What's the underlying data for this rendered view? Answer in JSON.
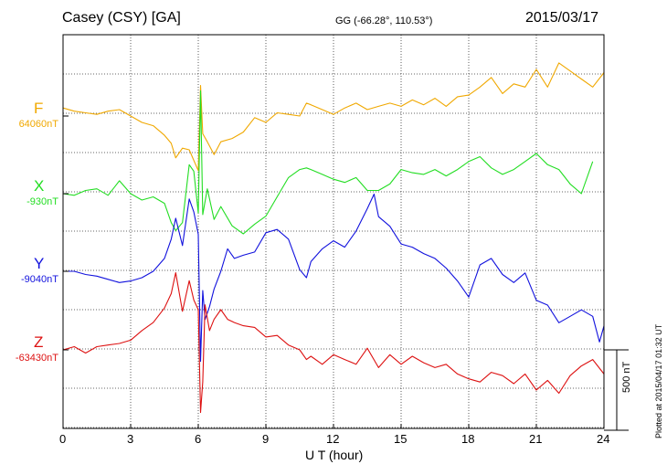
{
  "header": {
    "station": "Casey (CSY)  [GA]",
    "coords": "GG (-66.28°, 110.53°)",
    "date": "2015/03/17"
  },
  "footer": {
    "plotted": "Plotted at 2015/04/17 01:32 UT",
    "scale_label": "500 nT"
  },
  "chart_data": {
    "type": "line",
    "xlabel": "U T (hour)",
    "xlim": [
      0,
      24
    ],
    "xticks": [
      "0",
      "3",
      "6",
      "9",
      "12",
      "15",
      "18",
      "21",
      "24"
    ],
    "grid": true,
    "scale_bar_nT": 500,
    "series": [
      {
        "name": "F",
        "baseline_label": "64060nT",
        "color": "#f0a800",
        "hours": [
          0,
          0.5,
          1,
          1.5,
          2,
          2.5,
          3,
          3.5,
          4,
          4.5,
          4.8,
          5,
          5.3,
          5.6,
          6,
          6.1,
          6.2,
          6.4,
          6.7,
          7,
          7.5,
          8,
          8.5,
          9,
          9.5,
          10,
          10.5,
          10.8,
          11,
          11.5,
          12,
          12.5,
          13,
          13.5,
          14,
          14.5,
          15,
          15.5,
          16,
          16.5,
          17,
          17.5,
          18,
          18.5,
          19,
          19.5,
          20,
          20.5,
          21,
          21.5,
          22,
          22.5,
          23,
          23.5,
          24
        ],
        "offset_nT": [
          50,
          30,
          20,
          10,
          30,
          40,
          0,
          -40,
          -60,
          -120,
          -170,
          -260,
          -200,
          -210,
          -340,
          190,
          -110,
          -160,
          -240,
          -160,
          -140,
          -100,
          -10,
          -40,
          20,
          10,
          0,
          80,
          70,
          40,
          10,
          50,
          80,
          40,
          60,
          80,
          60,
          100,
          70,
          110,
          60,
          120,
          130,
          180,
          240,
          140,
          200,
          180,
          290,
          180,
          330,
          280,
          230,
          180,
          270
        ]
      },
      {
        "name": "X",
        "baseline_label": "-930nT",
        "color": "#22dd22",
        "hours": [
          0,
          0.5,
          1,
          1.5,
          2,
          2.5,
          3,
          3.5,
          4,
          4.5,
          4.8,
          5,
          5.3,
          5.6,
          5.8,
          6,
          6.1,
          6.2,
          6.4,
          6.7,
          7,
          7.5,
          8,
          8.5,
          9,
          9.5,
          10,
          10.5,
          10.8,
          11,
          11.5,
          12,
          12.5,
          13,
          13.5,
          14,
          14.5,
          15,
          15.5,
          16,
          16.5,
          17,
          17.5,
          18,
          18.5,
          19,
          19.5,
          20,
          20.5,
          21,
          21.5,
          22,
          22.5,
          23,
          23.5,
          24
        ],
        "offset_nT": [
          0,
          -10,
          20,
          30,
          -10,
          80,
          0,
          -40,
          -20,
          -60,
          -180,
          -230,
          -180,
          180,
          140,
          -120,
          640,
          -130,
          30,
          -160,
          -80,
          -200,
          -250,
          -190,
          -140,
          -20,
          100,
          150,
          160,
          150,
          120,
          90,
          70,
          100,
          20,
          20,
          60,
          150,
          130,
          120,
          150,
          110,
          150,
          200,
          230,
          160,
          120,
          150,
          200,
          250,
          180,
          150,
          60,
          0,
          200
        ]
      },
      {
        "name": "Y",
        "baseline_label": "-9040nT",
        "color": "#1111dd",
        "hours": [
          0,
          0.5,
          1,
          1.5,
          2,
          2.5,
          3,
          3.5,
          4,
          4.5,
          4.8,
          5,
          5.3,
          5.6,
          5.8,
          6,
          6.1,
          6.2,
          6.3,
          6.5,
          6.7,
          7,
          7.3,
          7.6,
          8,
          8.5,
          9,
          9.5,
          10,
          10.5,
          10.8,
          11,
          11.5,
          12,
          12.5,
          13,
          13.5,
          13.8,
          14,
          14.5,
          15,
          15.5,
          16,
          16.5,
          17,
          17.5,
          18,
          18.5,
          19,
          19.5,
          20,
          20.5,
          21,
          21.5,
          22,
          22.5,
          23,
          23.5,
          23.8,
          24
        ],
        "offset_nT": [
          0,
          0,
          -20,
          -30,
          -50,
          -70,
          -60,
          -40,
          0,
          80,
          200,
          330,
          160,
          450,
          370,
          230,
          -560,
          -120,
          -300,
          -220,
          -110,
          0,
          140,
          80,
          100,
          120,
          240,
          260,
          200,
          10,
          -40,
          60,
          140,
          190,
          150,
          250,
          390,
          480,
          340,
          280,
          170,
          150,
          110,
          80,
          20,
          -60,
          -160,
          40,
          80,
          -20,
          -70,
          -10,
          -180,
          -210,
          -320,
          -280,
          -240,
          -280,
          -440,
          -340
        ]
      },
      {
        "name": "Z",
        "baseline_label": "-63430nT",
        "color": "#dd1111",
        "hours": [
          0,
          0.5,
          1,
          1.5,
          2,
          2.5,
          3,
          3.5,
          4,
          4.5,
          4.8,
          5,
          5.3,
          5.6,
          5.8,
          6,
          6.1,
          6.2,
          6.3,
          6.5,
          6.7,
          7,
          7.3,
          7.6,
          8,
          8.5,
          9,
          9.5,
          10,
          10.5,
          10.8,
          11,
          11.5,
          12,
          12.5,
          13,
          13.5,
          14,
          14.5,
          15,
          15.5,
          16,
          16.5,
          17,
          17.5,
          18,
          18.5,
          19,
          19.5,
          20,
          20.5,
          21,
          21.5,
          22,
          22.5,
          23,
          23.5,
          24
        ],
        "offset_nT": [
          0,
          20,
          -20,
          20,
          30,
          40,
          60,
          120,
          170,
          260,
          350,
          480,
          240,
          430,
          310,
          250,
          -390,
          -200,
          280,
          120,
          190,
          250,
          190,
          170,
          150,
          140,
          80,
          90,
          30,
          0,
          -60,
          -40,
          -90,
          -30,
          -60,
          -90,
          10,
          -110,
          -30,
          -90,
          -40,
          -80,
          -110,
          -90,
          -150,
          -180,
          -200,
          -140,
          -160,
          -210,
          -150,
          -250,
          -190,
          -270,
          -160,
          -100,
          -60,
          -150
        ]
      }
    ]
  }
}
